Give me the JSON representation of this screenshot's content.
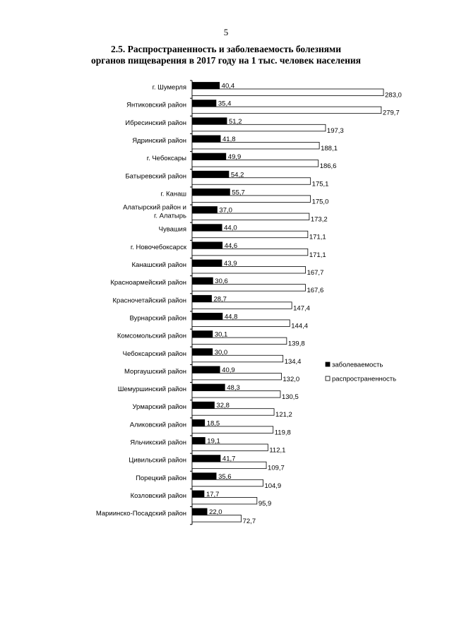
{
  "page": {
    "number": "5"
  },
  "chart_data": {
    "type": "bar",
    "orientation": "horizontal",
    "title_line1": "2.5. Распространенность и заболеваемость болезнями",
    "title_line2": "органов пищеварения в 2017 году на 1 тыс. человек населения",
    "categories": [
      "г. Шумерля",
      "Янтиковский район",
      "Ибресинский район",
      "Ядринский район",
      "г. Чебоксары",
      "Батыревский район",
      "г. Канаш",
      [
        "Алатырский район  и",
        "г. Алатырь"
      ],
      "Чувашия",
      "г. Новочебоксарск",
      "Канашский район",
      "Красноармейский район",
      "Красночетайский район",
      "Вурнарский район",
      "Комсомольский район",
      "Чебоксарский район",
      "Моргаушский район",
      "Шемуршинский  район",
      "Урмарский район",
      "Аликовский  район",
      "Яльчикский  район",
      "Цивильский район",
      "Порецкий район",
      "Козловский район",
      "Мариинско-Посадский район"
    ],
    "series": [
      {
        "name": "заболеваемость",
        "color": "#000000",
        "values": [
          40.4,
          35.4,
          51.2,
          41.8,
          49.9,
          54.2,
          55.7,
          37.0,
          44.0,
          44.6,
          43.9,
          30.6,
          28.7,
          44.8,
          30.1,
          30.0,
          40.9,
          48.3,
          32.8,
          18.5,
          19.1,
          41.7,
          35.6,
          17.7,
          22.0
        ],
        "labels": [
          "40,4",
          "35,4",
          "51,2",
          "41,8",
          "49,9",
          "54,2",
          "55,7",
          "37,0",
          "44,0",
          "44,6",
          "43,9",
          "30,6",
          "28,7",
          "44,8",
          "30,1",
          "30,0",
          "40,9",
          "48,3",
          "32,8",
          "18,5",
          "19,1",
          "41,7",
          "35,6",
          "17,7",
          "22,0"
        ]
      },
      {
        "name": "распространенность",
        "color": "#ffffff",
        "values": [
          283.0,
          279.7,
          197.3,
          188.1,
          186.6,
          175.1,
          175.0,
          173.2,
          171.1,
          171.1,
          167.7,
          167.6,
          147.4,
          144.4,
          139.8,
          134.4,
          132.0,
          130.5,
          121.2,
          119.8,
          112.1,
          109.7,
          104.9,
          95.9,
          72.7
        ],
        "labels": [
          "283,0",
          "279,7",
          "197,3",
          "188,1",
          "186,6",
          "175,1",
          "175,0",
          "173,2",
          "171,1",
          "171,1",
          "167,7",
          "167,6",
          "147,4",
          "144,4",
          "139,8",
          "134,4",
          "132,0",
          "130,5",
          "121,2",
          "119,8",
          "112,1",
          "109,7",
          "104,9",
          "95,9",
          "72,7"
        ]
      }
    ],
    "xlim": [
      0,
      283.0
    ],
    "xlabel": "",
    "ylabel": "",
    "grid": false,
    "legend_position": "right"
  }
}
